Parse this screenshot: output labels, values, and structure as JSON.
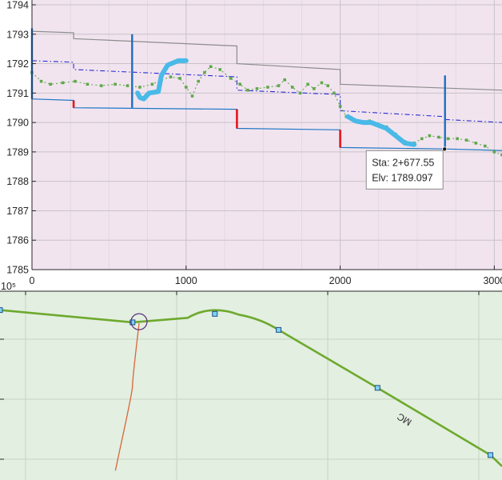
{
  "chart_data": [
    {
      "type": "line",
      "title": "",
      "xlabel": "",
      "ylabel": "",
      "xlim": [
        0,
        3050
      ],
      "ylim": [
        1785,
        1794
      ],
      "xticks": [
        0,
        1000,
        2000,
        3000
      ],
      "xtick_labels": [
        "0",
        "1000",
        "2000",
        "3000"
      ],
      "yticks": [
        1785,
        1786,
        1787,
        1788,
        1789,
        1790,
        1791,
        1792,
        1793,
        1794
      ],
      "ytick_labels": [
        "1785",
        "1786",
        "1787",
        "1788",
        "1789",
        "1790",
        "1791",
        "1792",
        "1793",
        "1794"
      ],
      "grid": true,
      "background_color": "#f1e4ef",
      "series": [
        {
          "style": "step-gray",
          "color": "#8c8c8c",
          "points": [
            [
              0,
              1793.1
            ],
            [
              270,
              1793.05
            ],
            [
              270,
              1792.85
            ],
            [
              1330,
              1792.6
            ],
            [
              1330,
              1792.0
            ],
            [
              2000,
              1791.8
            ],
            [
              2000,
              1791.3
            ],
            [
              3050,
              1791.1
            ]
          ]
        },
        {
          "style": "dashdot-blue",
          "color": "#2c2cd6",
          "points": [
            [
              0,
              1792.1
            ],
            [
              270,
              1792.05
            ],
            [
              270,
              1791.8
            ],
            [
              1330,
              1791.55
            ],
            [
              1330,
              1791.1
            ],
            [
              2000,
              1790.95
            ],
            [
              2000,
              1790.4
            ],
            [
              2680,
              1790.2
            ],
            [
              2680,
              1790.1
            ],
            [
              3050,
              1790.0
            ]
          ]
        },
        {
          "style": "step-blue",
          "color": "#1f77c4",
          "points": [
            [
              0,
              1790.8
            ],
            [
              270,
              1790.75
            ],
            [
              270,
              1790.5
            ],
            [
              1330,
              1790.45
            ],
            [
              1330,
              1789.8
            ],
            [
              2000,
              1789.75
            ],
            [
              2000,
              1789.15
            ],
            [
              2680,
              1789.1
            ],
            [
              3050,
              1789.05
            ]
          ]
        },
        {
          "style": "green-dotted",
          "color": "#5fa84a",
          "points": [
            [
              0,
              1791.7
            ],
            [
              60,
              1791.4
            ],
            [
              120,
              1791.3
            ],
            [
              200,
              1791.35
            ],
            [
              280,
              1791.4
            ],
            [
              360,
              1791.3
            ],
            [
              450,
              1791.25
            ],
            [
              540,
              1791.3
            ],
            [
              620,
              1791.25
            ],
            [
              700,
              1791.2
            ],
            [
              780,
              1791.3
            ],
            [
              840,
              1791.45
            ],
            [
              900,
              1791.55
            ],
            [
              960,
              1791.5
            ],
            [
              1000,
              1791.2
            ],
            [
              1040,
              1790.9
            ],
            [
              1080,
              1791.4
            ],
            [
              1120,
              1791.7
            ],
            [
              1160,
              1791.9
            ],
            [
              1220,
              1791.8
            ],
            [
              1290,
              1791.5
            ],
            [
              1350,
              1791.3
            ],
            [
              1400,
              1791.1
            ],
            [
              1460,
              1791.15
            ],
            [
              1530,
              1791.2
            ],
            [
              1600,
              1791.25
            ],
            [
              1640,
              1791.45
            ],
            [
              1690,
              1791.2
            ],
            [
              1740,
              1791.0
            ],
            [
              1790,
              1791.3
            ],
            [
              1830,
              1791.15
            ],
            [
              1880,
              1791.35
            ],
            [
              1920,
              1791.25
            ],
            [
              1960,
              1791.0
            ],
            [
              2000,
              1790.55
            ],
            [
              2040,
              1790.2
            ],
            [
              2090,
              1790.05
            ],
            [
              2140,
              1790.0
            ],
            [
              2190,
              1790.05
            ],
            [
              2240,
              1789.95
            ],
            [
              2300,
              1789.85
            ],
            [
              2360,
              1789.6
            ],
            [
              2420,
              1789.35
            ],
            [
              2480,
              1789.3
            ],
            [
              2530,
              1789.45
            ],
            [
              2580,
              1789.55
            ],
            [
              2640,
              1789.5
            ],
            [
              2700,
              1789.45
            ],
            [
              2760,
              1789.45
            ],
            [
              2820,
              1789.4
            ],
            [
              2880,
              1789.3
            ],
            [
              2940,
              1789.2
            ],
            [
              3000,
              1789.0
            ],
            [
              3050,
              1788.9
            ]
          ]
        },
        {
          "style": "thick-cyan",
          "color": "#49b9e8",
          "segments": [
            [
              [
                685,
                1791.0
              ],
              [
                700,
                1790.85
              ],
              [
                725,
                1790.8
              ],
              [
                760,
                1791.0
              ],
              [
                820,
                1791.05
              ],
              [
                840,
                1791.6
              ],
              [
                880,
                1791.95
              ],
              [
                950,
                1792.1
              ],
              [
                1000,
                1792.1
              ]
            ],
            [
              [
                2050,
                1790.2
              ],
              [
                2100,
                1790.05
              ],
              [
                2150,
                1790.0
              ],
              [
                2200,
                1790.0
              ],
              [
                2250,
                1789.9
              ],
              [
                2300,
                1789.8
              ],
              [
                2360,
                1789.55
              ],
              [
                2420,
                1789.3
              ],
              [
                2480,
                1789.25
              ]
            ]
          ]
        },
        {
          "style": "red-drops",
          "color": "#e8141b",
          "segments": [
            [
              [
                270,
                1790.75
              ],
              [
                270,
                1790.5
              ]
            ],
            [
              [
                1330,
                1790.45
              ],
              [
                1330,
                1789.8
              ]
            ],
            [
              [
                2000,
                1789.75
              ],
              [
                2000,
                1789.15
              ]
            ]
          ]
        },
        {
          "style": "station-markers",
          "color": "#1c6fc0",
          "segments": [
            [
              [
                0,
                1790.8
              ],
              [
                0,
                1793.2
              ]
            ],
            [
              [
                650,
                1790.5
              ],
              [
                650,
                1793.0
              ]
            ],
            [
              [
                2680,
                1789.1
              ],
              [
                2680,
                1791.6
              ]
            ]
          ]
        }
      ],
      "datatip": {
        "x": 2677.55,
        "y": 1789.097,
        "sta_label": "Sta: 2+677.55",
        "elv_label": "Elv: 1789.097"
      }
    },
    {
      "type": "line",
      "title": "",
      "exponent_label": "10⁵",
      "background_color": "#e3efe1",
      "grid": true,
      "series": [
        {
          "name": "MC",
          "label_text": "MC",
          "color": "#6ea92e",
          "vertices": [
            [
              0,
              0.1
            ],
            [
              0.264,
              0.165
            ],
            [
              0.428,
              0.12
            ],
            [
              0.555,
              0.205
            ],
            [
              0.752,
              0.512
            ],
            [
              0.977,
              0.868
            ]
          ]
        },
        {
          "style": "branch",
          "color": "#d8653a",
          "points": [
            [
              0.277,
              0.17
            ],
            [
              0.264,
              0.5
            ],
            [
              0.23,
              0.95
            ]
          ]
        }
      ]
    }
  ]
}
